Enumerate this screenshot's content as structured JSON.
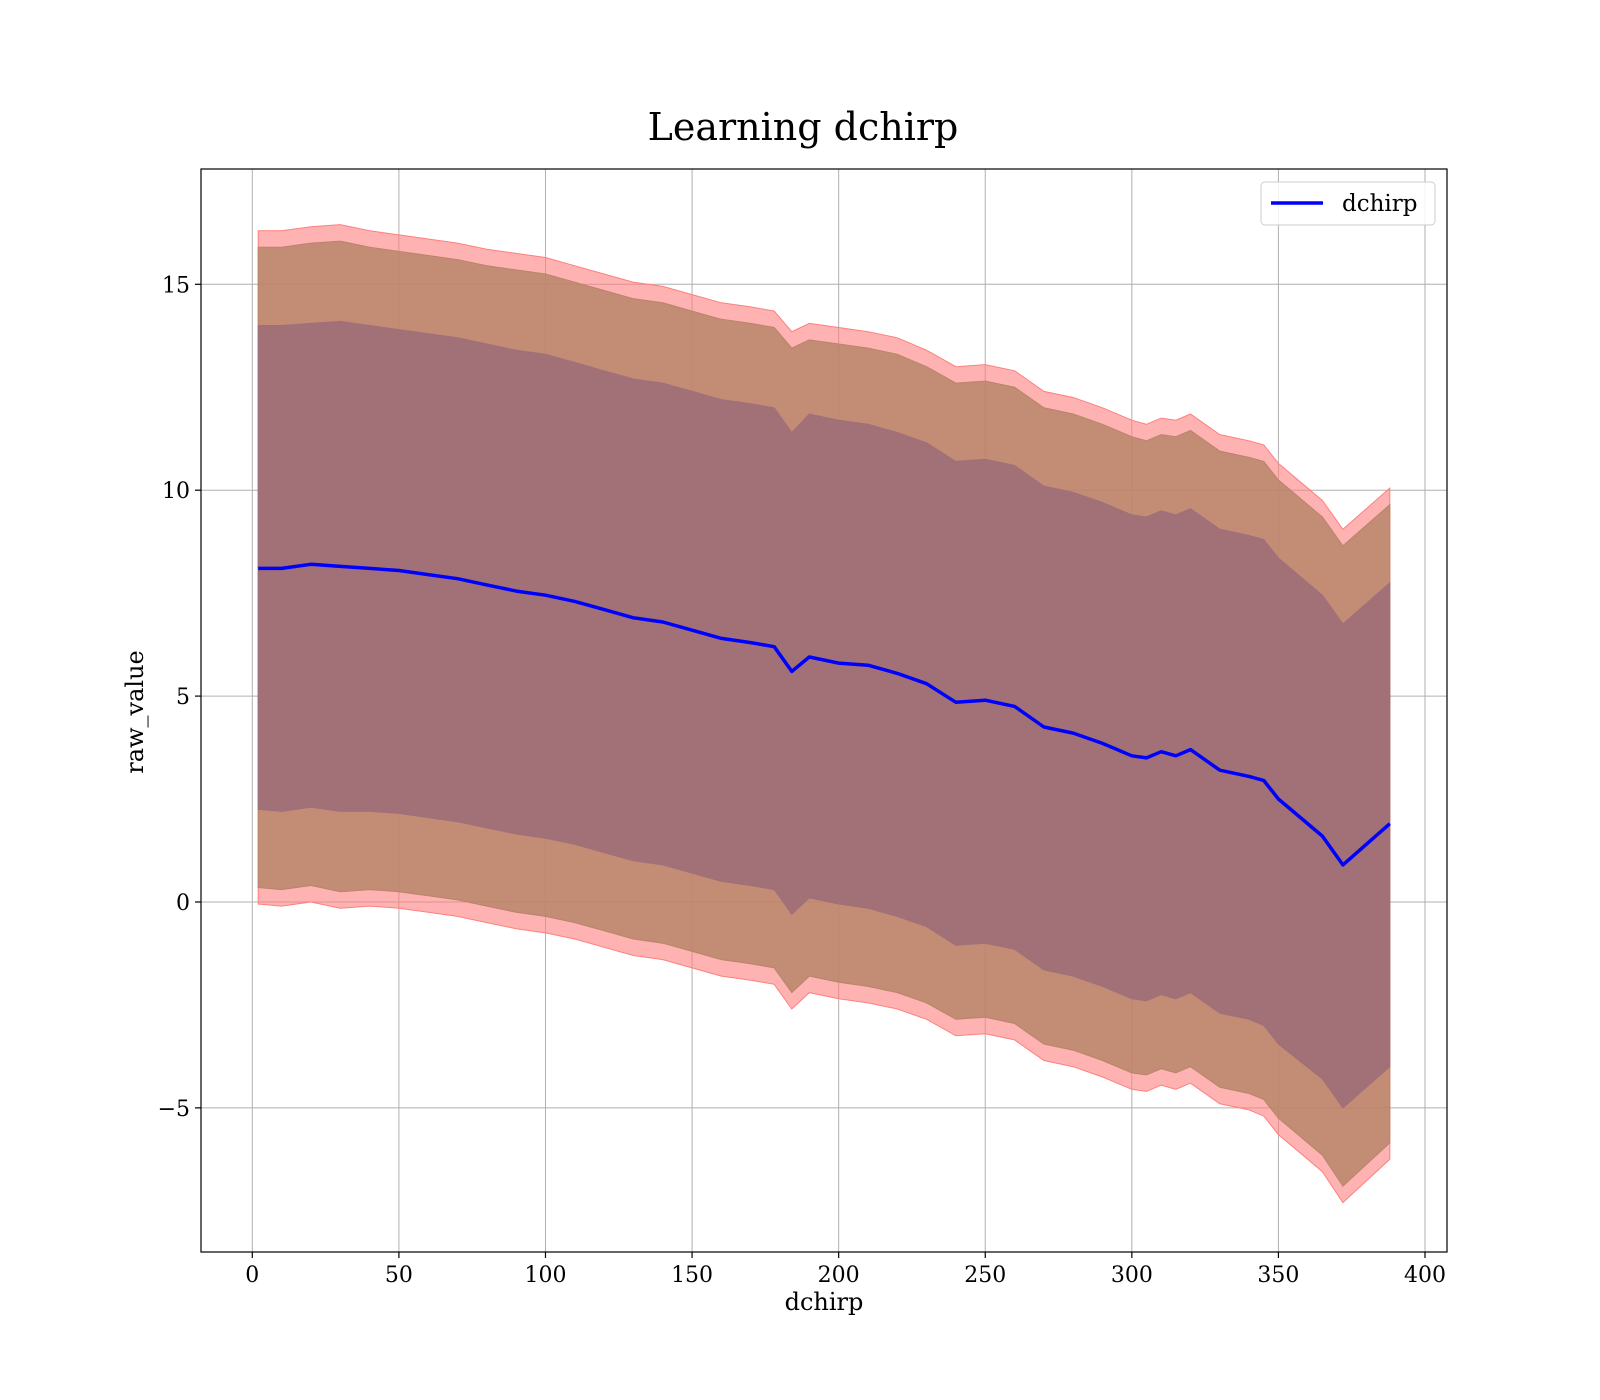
{
  "chart_data": {
    "type": "area",
    "title": "Learning dchirp",
    "xlabel": "dchirp",
    "ylabel": "raw_value",
    "xlim": [
      -17.5,
      407.5
    ],
    "ylim": [
      -8.5,
      17.8
    ],
    "xticks": [
      0,
      50,
      100,
      150,
      200,
      250,
      300,
      350,
      400
    ],
    "xtick_labels": [
      "0",
      "50",
      "100",
      "150",
      "200",
      "250",
      "300",
      "350",
      "400"
    ],
    "yticks": [
      -5,
      0,
      5,
      10,
      15
    ],
    "ytick_labels": [
      "−5",
      "0",
      "5",
      "10",
      "15"
    ],
    "grid": true,
    "legend": {
      "position": "top-right",
      "entries": [
        "dchirp"
      ]
    },
    "colors": {
      "line": "#0000ff",
      "band_outer": "#ff7f7f",
      "band_middle": "#b8856a",
      "band_inner": "#a07078",
      "grid": "#b0b0b0"
    },
    "series": [
      {
        "name": "dchirp",
        "x": [
          2,
          10,
          20,
          30,
          40,
          50,
          60,
          70,
          80,
          90,
          100,
          110,
          120,
          130,
          140,
          150,
          160,
          170,
          178,
          184,
          190,
          200,
          210,
          220,
          230,
          240,
          250,
          260,
          270,
          280,
          290,
          300,
          305,
          310,
          315,
          320,
          330,
          340,
          345,
          350,
          365,
          372,
          388
        ],
        "mean": [
          8.1,
          8.1,
          8.2,
          8.15,
          8.1,
          8.05,
          7.95,
          7.85,
          7.7,
          7.55,
          7.45,
          7.3,
          7.1,
          6.9,
          6.8,
          6.6,
          6.4,
          6.3,
          6.2,
          5.6,
          5.95,
          5.8,
          5.75,
          5.55,
          5.3,
          4.85,
          4.9,
          4.75,
          4.25,
          4.1,
          3.85,
          3.55,
          3.5,
          3.65,
          3.55,
          3.7,
          3.2,
          3.05,
          2.95,
          2.5,
          1.6,
          0.9,
          1.9
        ]
      }
    ],
    "bands": [
      {
        "level": "outer",
        "upper": [
          16.3,
          16.3,
          16.4,
          16.45,
          16.3,
          16.2,
          16.1,
          16.0,
          15.85,
          15.75,
          15.65,
          15.45,
          15.25,
          15.05,
          14.95,
          14.75,
          14.55,
          14.45,
          14.35,
          13.85,
          14.05,
          13.95,
          13.85,
          13.7,
          13.4,
          13.0,
          13.05,
          12.9,
          12.4,
          12.25,
          12.0,
          11.7,
          11.6,
          11.75,
          11.7,
          11.85,
          11.35,
          11.2,
          11.1,
          10.65,
          9.75,
          9.05,
          10.05
        ],
        "lower": [
          -0.05,
          -0.1,
          0.0,
          -0.15,
          -0.1,
          -0.15,
          -0.25,
          -0.35,
          -0.5,
          -0.65,
          -0.75,
          -0.9,
          -1.1,
          -1.3,
          -1.4,
          -1.6,
          -1.8,
          -1.9,
          -2.0,
          -2.6,
          -2.2,
          -2.35,
          -2.45,
          -2.6,
          -2.85,
          -3.25,
          -3.2,
          -3.35,
          -3.85,
          -4.0,
          -4.25,
          -4.55,
          -4.6,
          -4.45,
          -4.55,
          -4.4,
          -4.9,
          -5.05,
          -5.2,
          -5.65,
          -6.55,
          -7.3,
          -6.25
        ]
      },
      {
        "level": "middle",
        "upper": [
          15.9,
          15.9,
          16.0,
          16.05,
          15.9,
          15.8,
          15.7,
          15.6,
          15.45,
          15.35,
          15.25,
          15.05,
          14.85,
          14.65,
          14.55,
          14.35,
          14.15,
          14.05,
          13.95,
          13.45,
          13.65,
          13.55,
          13.45,
          13.3,
          13.0,
          12.6,
          12.65,
          12.5,
          12.0,
          11.85,
          11.6,
          11.3,
          11.2,
          11.35,
          11.3,
          11.45,
          10.95,
          10.8,
          10.7,
          10.25,
          9.35,
          8.65,
          9.65
        ],
        "lower": [
          0.35,
          0.3,
          0.4,
          0.25,
          0.3,
          0.25,
          0.15,
          0.05,
          -0.1,
          -0.25,
          -0.35,
          -0.5,
          -0.7,
          -0.9,
          -1.0,
          -1.2,
          -1.4,
          -1.5,
          -1.6,
          -2.2,
          -1.8,
          -1.95,
          -2.05,
          -2.2,
          -2.45,
          -2.85,
          -2.8,
          -2.95,
          -3.45,
          -3.6,
          -3.85,
          -4.15,
          -4.2,
          -4.05,
          -4.15,
          -4.0,
          -4.5,
          -4.65,
          -4.8,
          -5.25,
          -6.15,
          -6.9,
          -5.85
        ]
      },
      {
        "level": "inner",
        "upper": [
          14.0,
          14.0,
          14.05,
          14.1,
          14.0,
          13.9,
          13.8,
          13.7,
          13.55,
          13.4,
          13.3,
          13.1,
          12.9,
          12.7,
          12.6,
          12.4,
          12.2,
          12.1,
          12.0,
          11.4,
          11.85,
          11.7,
          11.6,
          11.4,
          11.15,
          10.7,
          10.75,
          10.6,
          10.1,
          9.95,
          9.7,
          9.4,
          9.35,
          9.5,
          9.4,
          9.55,
          9.05,
          8.9,
          8.8,
          8.35,
          7.45,
          6.75,
          7.75
        ],
        "lower": [
          2.25,
          2.2,
          2.3,
          2.2,
          2.2,
          2.15,
          2.05,
          1.95,
          1.8,
          1.65,
          1.55,
          1.4,
          1.2,
          1.0,
          0.9,
          0.7,
          0.5,
          0.4,
          0.3,
          -0.3,
          0.1,
          -0.05,
          -0.15,
          -0.35,
          -0.6,
          -1.05,
          -1.0,
          -1.15,
          -1.65,
          -1.8,
          -2.05,
          -2.35,
          -2.4,
          -2.25,
          -2.35,
          -2.2,
          -2.7,
          -2.85,
          -3.0,
          -3.45,
          -4.3,
          -5.0,
          -4.0
        ]
      }
    ]
  }
}
